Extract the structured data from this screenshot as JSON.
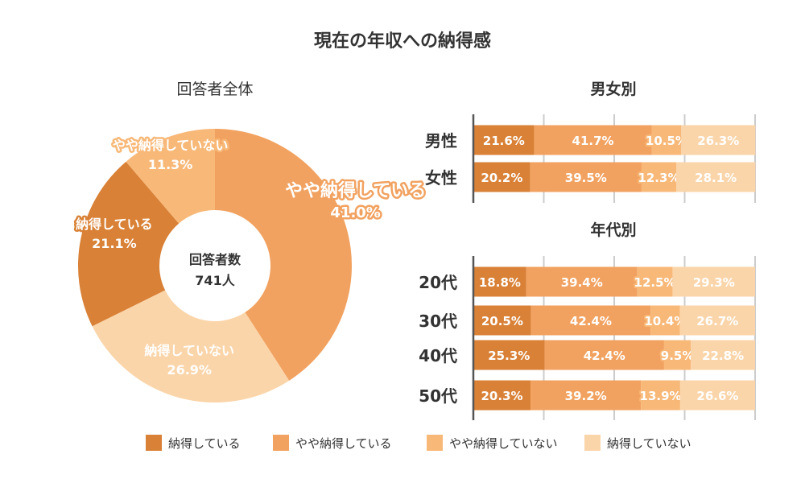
{
  "title": "現在の年収への納得感",
  "colors": {
    "s1": "#d98136",
    "s2": "#f2a260",
    "s3": "#f8b878",
    "s4": "#fbd5aa",
    "grid": "#cccccc",
    "axis": "#555555"
  },
  "legend": [
    "納得している",
    "やや納得している",
    "やや納得していない",
    "納得していない"
  ],
  "chart_data": [
    {
      "type": "pie",
      "subtitle": "回答者全体",
      "center_label": "回答者数",
      "center_value": "741人",
      "categories": [
        "やや納得している",
        "納得していない",
        "納得している",
        "やや納得していない"
      ],
      "values": [
        41.0,
        26.9,
        21.1,
        11.3
      ],
      "labels": [
        "41.0%",
        "26.9%",
        "21.1%",
        "11.3%"
      ]
    },
    {
      "type": "bar",
      "orientation": "horizontal-stacked",
      "subtitle": "男女別",
      "categories": [
        "男性",
        "女性"
      ],
      "series": [
        {
          "name": "納得している",
          "values": [
            21.6,
            20.2
          ],
          "labels": [
            "21.6%",
            "20.2%"
          ]
        },
        {
          "name": "やや納得している",
          "values": [
            41.7,
            39.5
          ],
          "labels": [
            "41.7%",
            "39.5%"
          ]
        },
        {
          "name": "やや納得していない",
          "values": [
            10.5,
            12.3
          ],
          "labels": [
            "10.5%",
            "12.3%"
          ]
        },
        {
          "name": "納得していない",
          "values": [
            26.3,
            28.1
          ],
          "labels": [
            "26.3%",
            "28.1%"
          ]
        }
      ],
      "xlim": [
        0,
        100
      ]
    },
    {
      "type": "bar",
      "orientation": "horizontal-stacked",
      "subtitle": "年代別",
      "categories": [
        "20代",
        "30代",
        "40代",
        "50代"
      ],
      "series": [
        {
          "name": "納得している",
          "values": [
            18.8,
            20.5,
            25.3,
            20.3
          ],
          "labels": [
            "18.8%",
            "20.5%",
            "25.3%",
            "20.3%"
          ]
        },
        {
          "name": "やや納得している",
          "values": [
            39.4,
            42.4,
            42.4,
            39.2
          ],
          "labels": [
            "39.4%",
            "42.4%",
            "42.4%",
            "39.2%"
          ]
        },
        {
          "name": "やや納得していない",
          "values": [
            12.5,
            10.4,
            9.5,
            13.9
          ],
          "labels": [
            "12.5%",
            "10.4%",
            "9.5%",
            "13.9%"
          ]
        },
        {
          "name": "納得していない",
          "values": [
            29.3,
            26.7,
            22.8,
            26.6
          ],
          "labels": [
            "29.3%",
            "26.7%",
            "22.8%",
            "26.6%"
          ]
        }
      ],
      "xlim": [
        0,
        100
      ]
    }
  ]
}
